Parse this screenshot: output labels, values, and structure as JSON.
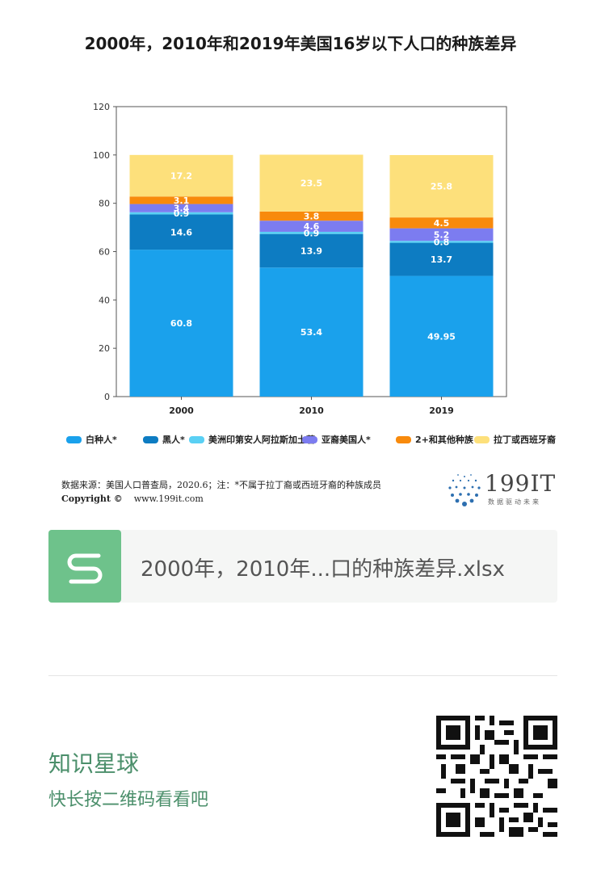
{
  "title": "2000年，2010年和2019年美国16岁以下人口的种族差异",
  "chart_data": {
    "type": "bar",
    "stacked": true,
    "categories": [
      "2000",
      "2010",
      "2019"
    ],
    "ylim": [
      0,
      120
    ],
    "yticks": [
      0,
      20,
      40,
      60,
      80,
      100,
      120
    ],
    "grid": false,
    "legend_position": "bottom",
    "series": [
      {
        "name": "白种人*",
        "color": "#1aa1ec",
        "values": [
          60.8,
          53.4,
          49.95
        ],
        "labels": [
          "60.8",
          "53.4",
          "49.95"
        ]
      },
      {
        "name": "黑人*",
        "color": "#0d7cc2",
        "values": [
          14.6,
          13.9,
          13.7
        ],
        "labels": [
          "14.6",
          "13.9",
          "13.7"
        ]
      },
      {
        "name": "美洲印第安人阿拉斯加土著",
        "color": "#5ad0f4",
        "values": [
          0.9,
          0.9,
          0.8
        ],
        "labels": [
          "0.9",
          "0.9",
          "0.8"
        ]
      },
      {
        "name": "亚裔美国人*",
        "color": "#7c7cf0",
        "values": [
          3.4,
          4.6,
          5.2
        ],
        "labels": [
          "3.4",
          "4.6",
          "5.2"
        ]
      },
      {
        "name": "2+和其他种族",
        "color": "#f88a0c",
        "values": [
          3.1,
          3.8,
          4.5
        ],
        "labels": [
          "3.1",
          "3.8",
          "4.5"
        ]
      },
      {
        "name": "拉丁或西班牙裔",
        "color": "#fde07b",
        "values": [
          17.2,
          23.5,
          25.8
        ],
        "labels": [
          "17.2",
          "23.5",
          "25.8"
        ]
      }
    ]
  },
  "source_text": "数据来源：美国人口普查局，2020.6；注：*不属于拉丁裔或西班牙裔的种族成员",
  "copyright_label": "Copyright ©",
  "copyright_url": "www.199it.com",
  "logo": {
    "text": "199IT",
    "tagline": "数据驱动未来"
  },
  "file_card": {
    "name": "2000年，2010年...口的种族差异.xlsx",
    "icon": "spreadsheet-s-icon",
    "accent": "#6ec28b"
  },
  "footer": {
    "title": "知识星球",
    "subtitle": "快长按二维码看看吧",
    "qr_icon": "qr-code-icon"
  }
}
